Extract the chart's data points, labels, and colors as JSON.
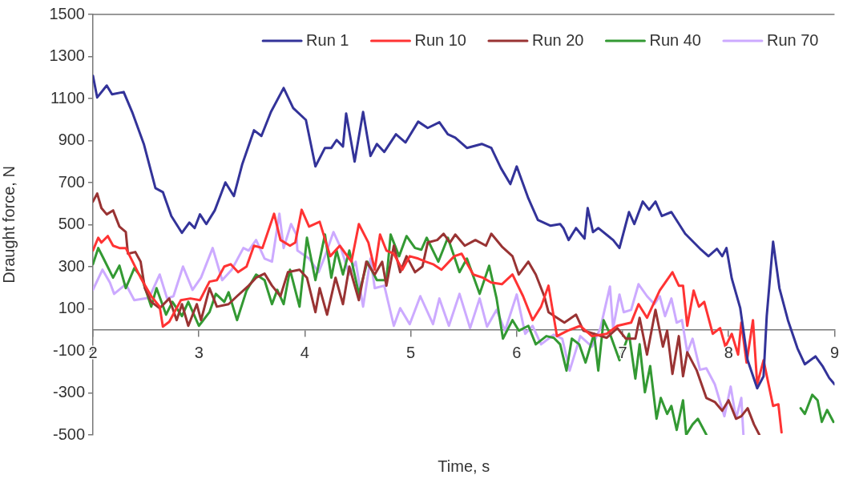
{
  "chart_data": {
    "type": "line",
    "xlabel": "Time, s",
    "ylabel": "Draught force, N",
    "xlim": [
      2,
      9
    ],
    "xticks": [
      2,
      3,
      4,
      5,
      6,
      7,
      8,
      9
    ],
    "ylim": [
      -500,
      1500
    ],
    "yticks": [
      -500,
      -300,
      -100,
      100,
      300,
      500,
      700,
      900,
      1100,
      1300,
      1500
    ],
    "grid": false,
    "legend": "top right",
    "marker": "none",
    "line_style": "solid",
    "series": [
      {
        "name": "Run 1",
        "color": "#333399",
        "x": [
          2.0,
          2.04,
          2.13,
          2.18,
          2.29,
          2.37,
          2.48,
          2.59,
          2.66,
          2.74,
          2.84,
          2.91,
          2.96,
          3.01,
          3.07,
          3.15,
          3.25,
          3.33,
          3.41,
          3.52,
          3.59,
          3.68,
          3.8,
          3.89,
          4.01,
          4.1,
          4.19,
          4.25,
          4.3,
          4.36,
          4.39,
          4.47,
          4.55,
          4.62,
          4.68,
          4.75,
          4.86,
          4.95,
          5.07,
          5.16,
          5.27,
          5.35,
          5.42,
          5.53,
          5.67,
          5.76,
          5.85,
          5.94,
          6.0,
          6.11,
          6.2,
          6.32,
          6.41,
          6.44,
          6.49,
          6.56,
          6.64,
          6.67,
          6.72,
          6.77,
          6.91,
          6.97,
          7.06,
          7.11,
          7.19,
          7.25,
          7.31,
          7.37,
          7.46,
          7.59,
          7.74,
          7.81,
          7.89,
          7.94,
          7.98,
          8.03,
          8.11,
          8.18,
          8.27,
          8.33,
          8.36,
          8.42,
          8.48,
          8.56,
          8.65,
          8.72,
          8.82,
          8.89,
          8.95,
          9.0
        ],
        "values": [
          1208,
          1105,
          1162,
          1120,
          1131,
          1036,
          884,
          674,
          655,
          541,
          461,
          510,
          484,
          549,
          503,
          568,
          701,
          636,
          789,
          949,
          922,
          1036,
          1150,
          1055,
          998,
          777,
          865,
          865,
          903,
          872,
          1029,
          800,
          1036,
          827,
          884,
          846,
          930,
          891,
          990,
          960,
          987,
          930,
          914,
          865,
          884,
          865,
          770,
          693,
          777,
          625,
          522,
          495,
          503,
          484,
          427,
          484,
          434,
          579,
          465,
          484,
          427,
          389,
          560,
          503,
          610,
          571,
          610,
          541,
          560,
          457,
          381,
          350,
          385,
          350,
          389,
          244,
          103,
          -145,
          -278,
          -221,
          65,
          419,
          198,
          46,
          -88,
          -164,
          -126,
          -175,
          -229,
          -259
        ]
      },
      {
        "name": "Run 10",
        "color": "#ff3333",
        "x": [
          2.0,
          2.05,
          2.08,
          2.14,
          2.19,
          2.25,
          2.31,
          2.45,
          2.55,
          2.63,
          2.66,
          2.72,
          2.83,
          2.92,
          3.01,
          3.1,
          3.17,
          3.24,
          3.3,
          3.37,
          3.45,
          3.52,
          3.6,
          3.71,
          3.77,
          3.86,
          3.91,
          3.97,
          4.04,
          4.14,
          4.24,
          4.33,
          4.44,
          4.51,
          4.6,
          4.66,
          4.71,
          4.77,
          4.84,
          4.92,
          4.99,
          5.07,
          5.14,
          5.21,
          5.29,
          5.41,
          5.48,
          5.59,
          5.68,
          5.76,
          5.86,
          5.96,
          6.06,
          6.15,
          6.23,
          6.3,
          6.38,
          6.48,
          6.6,
          6.71,
          6.85,
          6.95,
          7.08,
          7.15,
          7.23,
          7.35,
          7.47,
          7.53,
          7.57,
          7.61,
          7.67,
          7.72,
          7.77,
          7.85,
          7.92,
          7.97,
          8.03,
          8.09,
          8.12,
          8.17,
          8.23,
          8.27,
          8.33,
          8.42,
          8.47,
          8.5
        ],
        "values": [
          377,
          438,
          415,
          446,
          400,
          389,
          389,
          248,
          160,
          110,
          15,
          38,
          141,
          149,
          141,
          229,
          236,
          301,
          312,
          274,
          301,
          400,
          389,
          552,
          427,
          400,
          415,
          571,
          491,
          514,
          350,
          400,
          324,
          503,
          415,
          286,
          453,
          377,
          362,
          286,
          350,
          339,
          324,
          312,
          286,
          350,
          362,
          263,
          248,
          225,
          217,
          263,
          160,
          46,
          110,
          210,
          -30,
          -4,
          19,
          -30,
          -19,
          19,
          34,
          122,
          57,
          187,
          274,
          210,
          210,
          19,
          187,
          110,
          133,
          -19,
          8,
          -80,
          -19,
          -118,
          34,
          -156,
          46,
          -259,
          -145,
          -362,
          -354,
          -488
        ]
      },
      {
        "name": "Run 20",
        "color": "#993333",
        "x": [
          2.0,
          2.04,
          2.08,
          2.13,
          2.19,
          2.25,
          2.31,
          2.33,
          2.4,
          2.45,
          2.49,
          2.55,
          2.63,
          2.72,
          2.79,
          2.84,
          2.9,
          2.98,
          3.02,
          3.1,
          3.17,
          3.28,
          3.36,
          3.47,
          3.54,
          3.62,
          3.69,
          3.77,
          3.84,
          3.95,
          4.02,
          4.1,
          4.14,
          4.21,
          4.29,
          4.36,
          4.42,
          4.51,
          4.58,
          4.66,
          4.73,
          4.77,
          4.84,
          4.9,
          4.96,
          5.04,
          5.11,
          5.16,
          5.25,
          5.31,
          5.37,
          5.42,
          5.51,
          5.61,
          5.71,
          5.76,
          5.86,
          5.96,
          6.02,
          6.11,
          6.18,
          6.26,
          6.3,
          6.38,
          6.45,
          6.56,
          6.63,
          6.73,
          6.85,
          6.95,
          7.03,
          7.12,
          7.16,
          7.23,
          7.31,
          7.38,
          7.42,
          7.47,
          7.53,
          7.57,
          7.61,
          7.7,
          7.79,
          7.87,
          7.94,
          8.0,
          8.07,
          8.12,
          8.18,
          8.24,
          8.29
        ],
        "values": [
          610,
          648,
          579,
          549,
          568,
          491,
          465,
          362,
          370,
          324,
          198,
          133,
          103,
          149,
          46,
          122,
          19,
          122,
          46,
          198,
          110,
          122,
          160,
          210,
          248,
          267,
          210,
          160,
          274,
          286,
          248,
          84,
          198,
          72,
          248,
          122,
          301,
          141,
          324,
          263,
          324,
          210,
          400,
          274,
          350,
          274,
          301,
          415,
          427,
          457,
          415,
          453,
          400,
          427,
          400,
          457,
          396,
          350,
          263,
          324,
          263,
          160,
          84,
          57,
          34,
          72,
          -4,
          -19,
          -38,
          8,
          -42,
          -42,
          57,
          -118,
          95,
          -80,
          -4,
          -210,
          -30,
          -221,
          -107,
          -194,
          -324,
          -343,
          -385,
          -335,
          -423,
          -411,
          -373,
          -450,
          -499
        ]
      },
      {
        "name": "Run 40",
        "color": "#339933",
        "x": [
          2.0,
          2.05,
          2.1,
          2.19,
          2.25,
          2.31,
          2.39,
          2.46,
          2.55,
          2.6,
          2.69,
          2.75,
          2.84,
          2.9,
          3.0,
          3.1,
          3.16,
          3.24,
          3.28,
          3.36,
          3.45,
          3.54,
          3.62,
          3.69,
          3.74,
          3.8,
          3.86,
          3.95,
          4.02,
          4.1,
          4.19,
          4.25,
          4.3,
          4.36,
          4.42,
          4.51,
          4.59,
          4.68,
          4.77,
          4.81,
          4.89,
          4.96,
          5.04,
          5.1,
          5.15,
          5.26,
          5.35,
          5.46,
          5.53,
          5.65,
          5.74,
          5.81,
          5.87,
          5.96,
          6.02,
          6.11,
          6.18,
          6.28,
          6.35,
          6.41,
          6.47,
          6.52,
          6.59,
          6.65,
          6.73,
          6.77,
          6.82,
          6.88,
          6.97,
          7.06,
          7.12,
          7.16,
          7.21,
          7.26,
          7.32,
          7.36,
          7.42,
          7.46,
          7.51,
          7.57,
          7.6,
          7.66,
          7.71,
          7.79,
          8.22,
          8.68,
          8.72,
          8.79,
          8.84,
          8.88,
          8.93,
          8.99
        ],
        "values": [
          312,
          389,
          339,
          248,
          305,
          198,
          293,
          248,
          110,
          198,
          72,
          133,
          65,
          133,
          19,
          84,
          171,
          133,
          179,
          46,
          187,
          263,
          236,
          122,
          190,
          122,
          286,
          110,
          438,
          236,
          453,
          248,
          377,
          263,
          377,
          171,
          324,
          236,
          236,
          453,
          350,
          446,
          389,
          381,
          438,
          324,
          438,
          274,
          339,
          171,
          305,
          149,
          -42,
          46,
          -4,
          19,
          -69,
          -30,
          -38,
          -69,
          -194,
          -42,
          -69,
          -156,
          -19,
          -194,
          46,
          -19,
          -145,
          -19,
          -232,
          -69,
          -297,
          -172,
          -423,
          -324,
          -400,
          -362,
          -476,
          -335,
          -499,
          -450,
          -423,
          -499,
          null,
          -373,
          -400,
          -309,
          -335,
          -438,
          -381,
          -438
        ]
      },
      {
        "name": "Run 70",
        "color": "#ccaaff",
        "x": [
          2.0,
          2.09,
          2.16,
          2.2,
          2.31,
          2.39,
          2.53,
          2.63,
          2.7,
          2.76,
          2.85,
          2.94,
          3.02,
          3.13,
          3.22,
          3.31,
          3.42,
          3.47,
          3.54,
          3.62,
          3.69,
          3.76,
          3.8,
          3.87,
          3.92,
          3.93,
          4.04,
          4.13,
          4.19,
          4.27,
          4.34,
          4.42,
          4.48,
          4.55,
          4.62,
          4.66,
          4.75,
          4.84,
          4.9,
          4.99,
          5.09,
          5.21,
          5.27,
          5.36,
          5.46,
          5.56,
          5.65,
          5.72,
          5.81,
          5.89,
          6.0,
          6.08,
          6.15,
          6.23,
          6.35,
          6.43,
          6.5,
          6.6,
          6.71,
          6.79,
          6.88,
          6.91,
          6.97,
          7.01,
          7.08,
          7.15,
          7.23,
          7.3,
          7.35,
          7.4,
          7.46,
          7.51,
          7.56,
          7.61,
          7.66,
          7.73,
          7.79,
          7.87,
          7.96,
          8.02,
          8.07,
          8.12,
          8.14
        ],
        "values": [
          190,
          286,
          225,
          171,
          217,
          141,
          152,
          263,
          149,
          160,
          301,
          190,
          248,
          389,
          236,
          286,
          389,
          377,
          427,
          339,
          324,
          552,
          389,
          503,
          453,
          377,
          339,
          274,
          350,
          465,
          389,
          263,
          324,
          110,
          339,
          198,
          210,
          19,
          103,
          27,
          160,
          27,
          149,
          19,
          171,
          8,
          149,
          15,
          95,
          -4,
          168,
          -19,
          19,
          -69,
          -23,
          -42,
          -194,
          -30,
          -80,
          8,
          206,
          8,
          168,
          84,
          95,
          217,
          160,
          122,
          160,
          65,
          149,
          34,
          46,
          -107,
          -42,
          -190,
          -183,
          -259,
          -411,
          -270,
          -423,
          -324,
          -499
        ]
      }
    ]
  }
}
